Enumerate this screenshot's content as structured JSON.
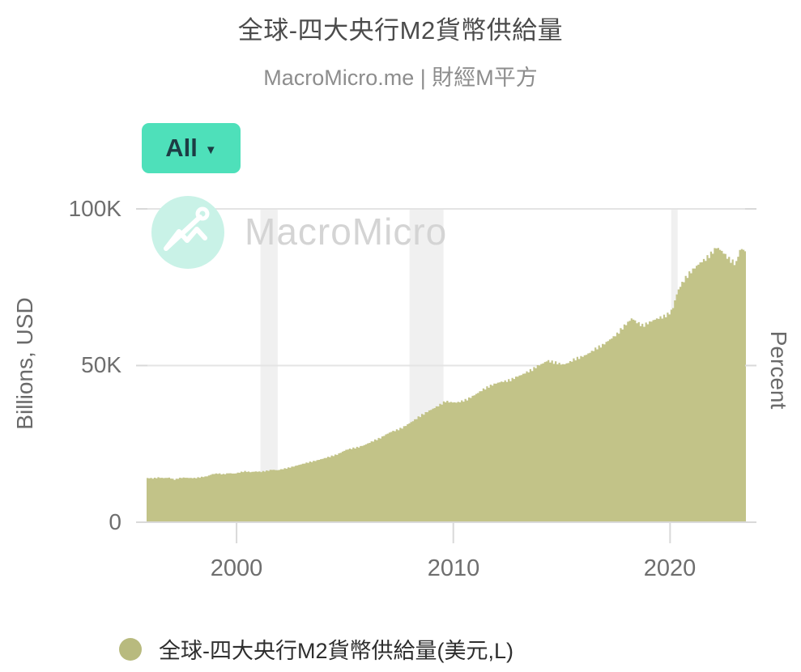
{
  "header": {
    "title": "全球-四大央行M2貨幣供給量",
    "subtitle": "MacroMicro.me | 財經M平方"
  },
  "controls": {
    "range_button": {
      "label": "All",
      "caret": "▼",
      "color": "#4ee0ba",
      "text_color": "#1d3c44"
    }
  },
  "watermark": {
    "text": "MacroMicro",
    "circle_color": "#c9f2e7"
  },
  "chart_data": {
    "type": "area",
    "title": "全球-四大央行M2貨幣供給量",
    "x_axis": {
      "range": [
        1995.85,
        2023.5
      ],
      "ticks": [
        {
          "value": 2000,
          "label": "2000"
        },
        {
          "value": 2010,
          "label": "2010"
        },
        {
          "value": 2020,
          "label": "2020"
        }
      ]
    },
    "y_axis_left": {
      "label": "Billions, USD",
      "range": [
        0,
        100000
      ],
      "ticks": [
        {
          "value": 0,
          "label": "0"
        },
        {
          "value": 50000,
          "label": "50K"
        },
        {
          "value": 100000,
          "label": "100K"
        }
      ]
    },
    "y_axis_right": {
      "label": "Percent"
    },
    "grid": true,
    "legend_position": "bottom",
    "colors": {
      "gridline": "#e4e4e4",
      "axis_line": "#d9d9d9",
      "recession_band": "#f0f0f0"
    },
    "recession_bands": [
      [
        2001.1,
        2001.9
      ],
      [
        2007.98,
        2009.55
      ],
      [
        2020.05,
        2020.35
      ]
    ],
    "series": [
      {
        "name": "全球-四大央行M2貨幣供給量(美元,L)",
        "color": "#c2c388",
        "unit": "billions USD",
        "points": [
          [
            1995.85,
            14100
          ],
          [
            1996.1,
            14000
          ],
          [
            1996.35,
            14250
          ],
          [
            1996.6,
            14100
          ],
          [
            1996.85,
            14200
          ],
          [
            1997.1,
            13600
          ],
          [
            1997.3,
            14050
          ],
          [
            1997.55,
            14250
          ],
          [
            1997.8,
            14100
          ],
          [
            1998.05,
            14100
          ],
          [
            1998.3,
            14350
          ],
          [
            1998.6,
            14650
          ],
          [
            1998.85,
            15350
          ],
          [
            1999.1,
            15550
          ],
          [
            1999.35,
            15300
          ],
          [
            1999.6,
            15650
          ],
          [
            1999.85,
            15500
          ],
          [
            2000.1,
            15900
          ],
          [
            2000.35,
            16250
          ],
          [
            2000.6,
            16000
          ],
          [
            2000.85,
            16200
          ],
          [
            2001.1,
            16100
          ],
          [
            2001.35,
            16400
          ],
          [
            2001.6,
            16750
          ],
          [
            2001.85,
            16600
          ],
          [
            2002.1,
            17000
          ],
          [
            2002.35,
            17350
          ],
          [
            2002.6,
            17800
          ],
          [
            2002.85,
            18300
          ],
          [
            2003.1,
            18800
          ],
          [
            2003.35,
            19200
          ],
          [
            2003.6,
            19600
          ],
          [
            2003.85,
            20100
          ],
          [
            2004.1,
            20600
          ],
          [
            2004.35,
            21100
          ],
          [
            2004.6,
            21600
          ],
          [
            2004.85,
            22500
          ],
          [
            2005.05,
            23200
          ],
          [
            2005.35,
            23600
          ],
          [
            2005.6,
            24000
          ],
          [
            2005.85,
            24600
          ],
          [
            2006.1,
            25400
          ],
          [
            2006.35,
            26200
          ],
          [
            2006.6,
            26900
          ],
          [
            2006.85,
            28000
          ],
          [
            2007.1,
            28900
          ],
          [
            2007.35,
            29400
          ],
          [
            2007.6,
            30100
          ],
          [
            2007.85,
            31200
          ],
          [
            2008.1,
            32300
          ],
          [
            2008.35,
            33500
          ],
          [
            2008.6,
            34600
          ],
          [
            2008.85,
            35600
          ],
          [
            2009.1,
            36500
          ],
          [
            2009.35,
            37500
          ],
          [
            2009.6,
            38600
          ],
          [
            2009.85,
            38300
          ],
          [
            2010.1,
            38200
          ],
          [
            2010.35,
            38600
          ],
          [
            2010.6,
            39200
          ],
          [
            2010.85,
            40200
          ],
          [
            2011.1,
            41300
          ],
          [
            2011.35,
            42400
          ],
          [
            2011.6,
            43300
          ],
          [
            2011.85,
            44100
          ],
          [
            2012.1,
            44700
          ],
          [
            2012.35,
            45000
          ],
          [
            2012.6,
            45400
          ],
          [
            2012.85,
            46300
          ],
          [
            2013.1,
            47000
          ],
          [
            2013.35,
            47900
          ],
          [
            2013.6,
            48700
          ],
          [
            2013.85,
            49900
          ],
          [
            2014.1,
            50700
          ],
          [
            2014.3,
            51600
          ],
          [
            2014.55,
            51100
          ],
          [
            2014.8,
            50700
          ],
          [
            2015.05,
            50300
          ],
          [
            2015.3,
            51000
          ],
          [
            2015.55,
            52000
          ],
          [
            2015.8,
            52600
          ],
          [
            2016.05,
            53300
          ],
          [
            2016.3,
            54300
          ],
          [
            2016.55,
            55500
          ],
          [
            2016.8,
            56300
          ],
          [
            2017.05,
            57600
          ],
          [
            2017.3,
            58900
          ],
          [
            2017.55,
            60300
          ],
          [
            2017.8,
            62300
          ],
          [
            2018.05,
            64000
          ],
          [
            2018.2,
            65100
          ],
          [
            2018.45,
            63700
          ],
          [
            2018.7,
            62700
          ],
          [
            2018.95,
            63600
          ],
          [
            2019.2,
            64500
          ],
          [
            2019.45,
            65200
          ],
          [
            2019.7,
            65700
          ],
          [
            2019.95,
            66800
          ],
          [
            2020.1,
            68500
          ],
          [
            2020.25,
            72500
          ],
          [
            2020.4,
            75000
          ],
          [
            2020.55,
            76700
          ],
          [
            2020.7,
            78100
          ],
          [
            2020.85,
            79400
          ],
          [
            2021.1,
            81200
          ],
          [
            2021.35,
            82800
          ],
          [
            2021.6,
            84000
          ],
          [
            2021.85,
            85600
          ],
          [
            2022.0,
            86900
          ],
          [
            2022.1,
            87700
          ],
          [
            2022.25,
            87100
          ],
          [
            2022.4,
            86200
          ],
          [
            2022.55,
            85000
          ],
          [
            2022.7,
            83900
          ],
          [
            2022.85,
            83100
          ],
          [
            2023.0,
            82400
          ],
          [
            2023.08,
            84600
          ],
          [
            2023.17,
            86600
          ],
          [
            2023.27,
            87300
          ],
          [
            2023.4,
            86600
          ],
          [
            2023.5,
            86200
          ]
        ]
      }
    ]
  },
  "legend": {
    "items": [
      {
        "label": "全球-四大央行M2貨幣供給量(美元,L)",
        "color": "#b8ba7e"
      }
    ]
  }
}
